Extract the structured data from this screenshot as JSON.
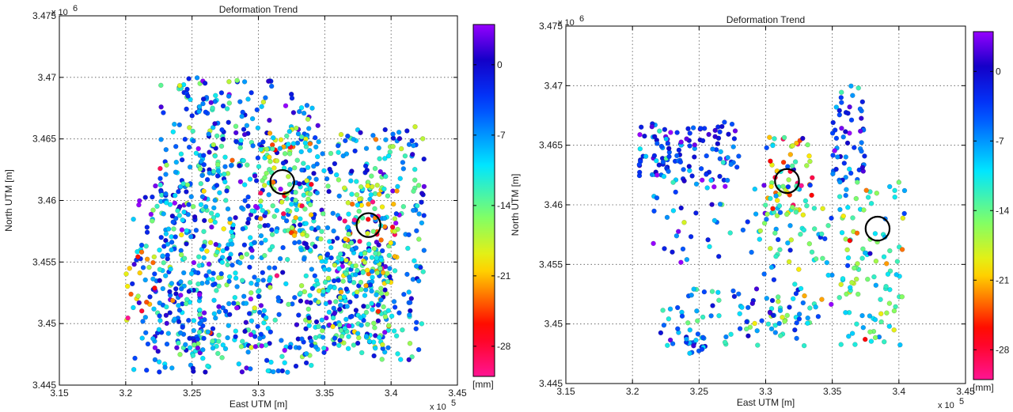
{
  "chart_data": [
    {
      "type": "scatter",
      "title": "Deformation Trend",
      "xlabel": "East UTM [m]",
      "ylabel": "North UTM [m]",
      "x_multiplier": "x 10",
      "x_exponent": "5",
      "y_multiplier": "x 10",
      "y_exponent": "6",
      "xlim": [
        3.15,
        3.45
      ],
      "ylim": [
        3.445,
        3.475
      ],
      "xticks": [
        "3.15",
        "3.2",
        "3.25",
        "3.3",
        "3.35",
        "3.4",
        "3.45"
      ],
      "yticks": [
        "3.445",
        "3.45",
        "3.455",
        "3.46",
        "3.465",
        "3.47",
        "3.475"
      ],
      "grid": true,
      "colorbar": {
        "unit": "[mm]",
        "range": [
          -31,
          4
        ],
        "ticks": [
          "0",
          "-7",
          "-14",
          "-21",
          "-28"
        ]
      },
      "annotations": [
        {
          "shape": "circle",
          "x": 3.318,
          "y": 3.4615,
          "radius_x": 0.009
        },
        {
          "shape": "circle",
          "x": 3.383,
          "y": 3.458,
          "radius_x": 0.009
        }
      ],
      "point_regions": [
        {
          "x": [
            3.205,
            3.26
          ],
          "y": [
            3.446,
            3.462
          ],
          "n": 170,
          "mean": -5,
          "sd": 6
        },
        {
          "x": [
            3.225,
            3.31
          ],
          "y": [
            3.448,
            3.47
          ],
          "n": 300,
          "mean": -8,
          "sd": 5
        },
        {
          "x": [
            3.255,
            3.345
          ],
          "y": [
            3.446,
            3.469
          ],
          "n": 320,
          "mean": -7,
          "sd": 6
        },
        {
          "x": [
            3.33,
            3.425
          ],
          "y": [
            3.447,
            3.466
          ],
          "n": 340,
          "mean": -7,
          "sd": 6
        },
        {
          "x": [
            3.3,
            3.34
          ],
          "y": [
            3.457,
            3.466
          ],
          "n": 90,
          "mean": -15,
          "sd": 6
        },
        {
          "x": [
            3.365,
            3.405
          ],
          "y": [
            3.454,
            3.462
          ],
          "n": 90,
          "mean": -15,
          "sd": 7
        },
        {
          "x": [
            3.345,
            3.4
          ],
          "y": [
            3.448,
            3.456
          ],
          "n": 150,
          "mean": -11,
          "sd": 6
        },
        {
          "x": [
            3.2,
            3.225
          ],
          "y": [
            3.45,
            3.456
          ],
          "n": 20,
          "mean": -20,
          "sd": 6
        }
      ]
    },
    {
      "type": "scatter",
      "title": "Deformation Trend",
      "xlabel": "East UTM [m]",
      "ylabel": "North UTM [m]",
      "x_multiplier": "x 10",
      "x_exponent": "5",
      "y_multiplier": "x 10",
      "y_exponent": "6",
      "xlim": [
        3.15,
        3.45
      ],
      "ylim": [
        3.445,
        3.475
      ],
      "xticks": [
        "3.15",
        "3.2",
        "3.25",
        "3.3",
        "3.35",
        "3.4",
        "3.45"
      ],
      "yticks": [
        "3.445",
        "3.45",
        "3.455",
        "3.46",
        "3.465",
        "3.47",
        "3.475"
      ],
      "grid": true,
      "colorbar": {
        "unit": "[mm]",
        "range": [
          -31,
          4
        ],
        "ticks": [
          "0",
          "-7",
          "-14",
          "-21",
          "-28"
        ]
      },
      "annotations": [
        {
          "shape": "circle",
          "x": 3.316,
          "y": 3.462,
          "radius_x": 0.009
        },
        {
          "shape": "circle",
          "x": 3.384,
          "y": 3.458,
          "radius_x": 0.009
        }
      ],
      "point_regions": [
        {
          "x": [
            3.205,
            3.28
          ],
          "y": [
            3.462,
            3.467
          ],
          "n": 120,
          "mean": -3,
          "sd": 4
        },
        {
          "x": [
            3.215,
            3.3
          ],
          "y": [
            3.455,
            3.462
          ],
          "n": 40,
          "mean": -5,
          "sd": 6
        },
        {
          "x": [
            3.3,
            3.335
          ],
          "y": [
            3.459,
            3.466
          ],
          "n": 70,
          "mean": -16,
          "sd": 7
        },
        {
          "x": [
            3.35,
            3.375
          ],
          "y": [
            3.462,
            3.47
          ],
          "n": 55,
          "mean": -3,
          "sd": 4
        },
        {
          "x": [
            3.295,
            3.35
          ],
          "y": [
            3.45,
            3.46
          ],
          "n": 70,
          "mean": -10,
          "sd": 5
        },
        {
          "x": [
            3.355,
            3.405
          ],
          "y": [
            3.448,
            3.462
          ],
          "n": 110,
          "mean": -13,
          "sd": 5
        },
        {
          "x": [
            3.22,
            3.33
          ],
          "y": [
            3.448,
            3.453
          ],
          "n": 80,
          "mean": -7,
          "sd": 5
        },
        {
          "x": [
            3.24,
            3.255
          ],
          "y": [
            3.4475,
            3.449
          ],
          "n": 20,
          "mean": -4,
          "sd": 3
        }
      ]
    }
  ]
}
